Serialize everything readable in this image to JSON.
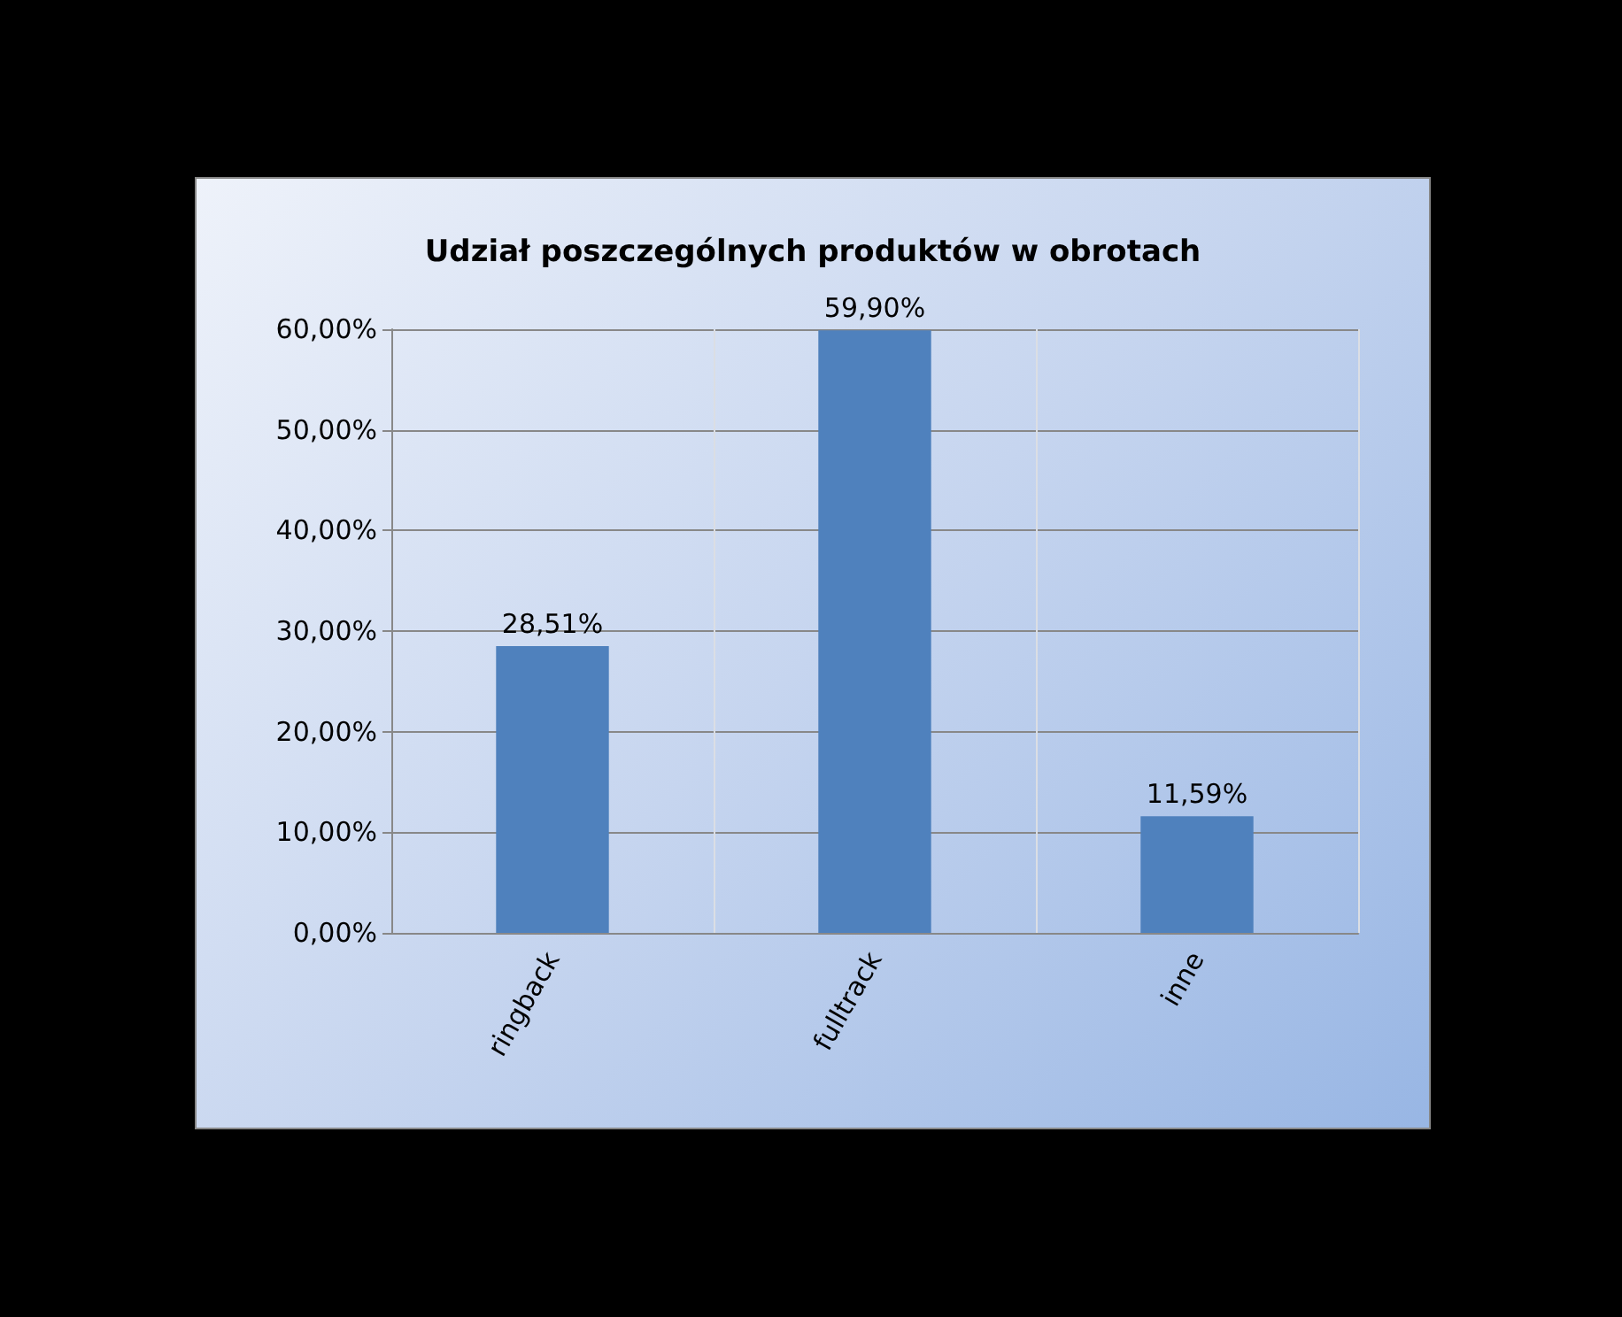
{
  "chart_data": {
    "type": "bar",
    "title": "Udział poszczególnych produktów w obrotach",
    "categories": [
      "ringback",
      "fulltrack",
      "inne"
    ],
    "values": [
      28.51,
      59.9,
      11.59
    ],
    "value_labels": [
      "28,51%",
      "59,90%",
      "11,59%"
    ],
    "color": "#4f81bd",
    "ylim": [
      0,
      60
    ],
    "yticks": [
      {
        "value": 0,
        "label": "0,00%"
      },
      {
        "value": 10,
        "label": "10,00%"
      },
      {
        "value": 20,
        "label": "20,00%"
      },
      {
        "value": 30,
        "label": "30,00%"
      },
      {
        "value": 40,
        "label": "40,00%"
      },
      {
        "value": 50,
        "label": "50,00%"
      },
      {
        "value": 60,
        "label": "60,00%"
      }
    ],
    "grid": true
  }
}
